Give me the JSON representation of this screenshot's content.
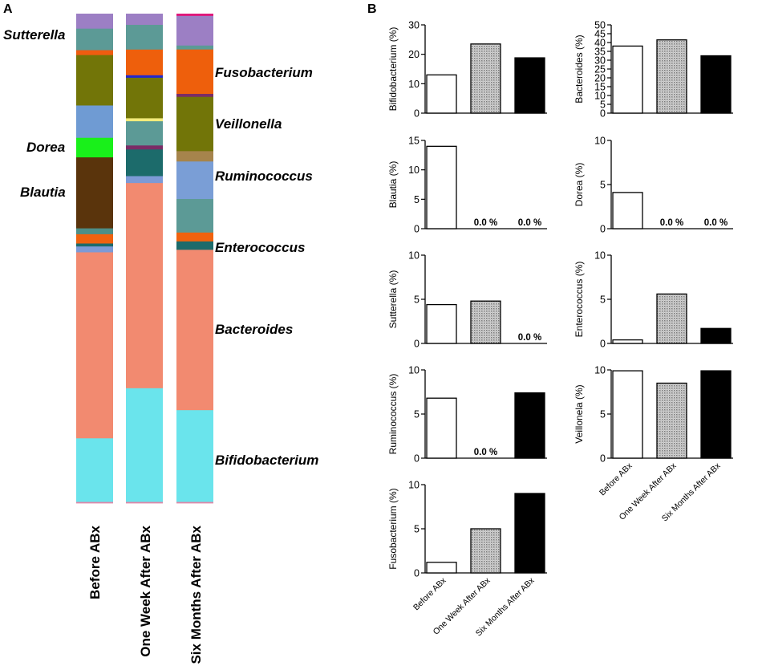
{
  "panels": {
    "a": "A",
    "b": "B"
  },
  "chart_data": [
    {
      "id": "A",
      "type": "bar",
      "subtype": "stacked-100-percent",
      "title": "",
      "ylabel": "",
      "ylim": [
        0,
        100
      ],
      "categories": [
        "Before ABx",
        "One Week After ABx",
        "Six Months After ABx"
      ],
      "note": "Segments listed from bottom (0%) to top (100%) as percentage of total reads; colours as drawn.",
      "stacks": [
        [
          {
            "color": "#e087a8",
            "value": 0.3
          },
          {
            "color": "#6ae4ec",
            "value": 13.0
          },
          {
            "color": "#f28a70",
            "value": 38.0
          },
          {
            "color": "#7d9ad6",
            "value": 1.2
          },
          {
            "color": "#1c6b6b",
            "value": 0.6
          },
          {
            "color": "#f0620f",
            "value": 1.9
          },
          {
            "color": "#4d8f88",
            "value": 1.2
          },
          {
            "color": "#5a340c",
            "value": 14.5
          },
          {
            "color": "#19f01a",
            "value": 4.0
          },
          {
            "color": "#6f9bd3",
            "value": 6.6
          },
          {
            "color": "#727508",
            "value": 10.3
          },
          {
            "color": "#ef5c10",
            "value": 1.0
          },
          {
            "color": "#5c9a96",
            "value": 4.4
          },
          {
            "color": "#9c7fc4",
            "value": 3.0
          }
        ],
        [
          {
            "color": "#e087a8",
            "value": 0.3
          },
          {
            "color": "#6ae4ec",
            "value": 23.0
          },
          {
            "color": "#f28a70",
            "value": 41.5
          },
          {
            "color": "#7d9ad6",
            "value": 1.4
          },
          {
            "color": "#1c6b6b",
            "value": 5.4
          },
          {
            "color": "#7a2c66",
            "value": 0.8
          },
          {
            "color": "#5c9a96",
            "value": 4.9
          },
          {
            "color": "#f3ec7b",
            "value": 0.6
          },
          {
            "color": "#727508",
            "value": 8.2
          },
          {
            "color": "#2028cf",
            "value": 0.5
          },
          {
            "color": "#ee5f0c",
            "value": 5.2
          },
          {
            "color": "#5c9a96",
            "value": 5.0
          },
          {
            "color": "#9c7fc4",
            "value": 2.2
          }
        ],
        [
          {
            "color": "#e087a8",
            "value": 0.3
          },
          {
            "color": "#6ae4ec",
            "value": 18.6
          },
          {
            "color": "#f28a70",
            "value": 32.5
          },
          {
            "color": "#1c6b6b",
            "value": 1.7
          },
          {
            "color": "#f0620f",
            "value": 1.8
          },
          {
            "color": "#5c9a96",
            "value": 0.6
          },
          {
            "color": "#5c9a96",
            "value": 6.2
          },
          {
            "color": "#7a9ed6",
            "value": 7.6
          },
          {
            "color": "#a6844c",
            "value": 2.1
          },
          {
            "color": "#727508",
            "value": 11.0
          },
          {
            "color": "#7a2c66",
            "value": 0.6
          },
          {
            "color": "#ee5f0c",
            "value": 9.0
          },
          {
            "color": "#5c9a96",
            "value": 0.8
          },
          {
            "color": "#9c7fc4",
            "value": 6.0
          },
          {
            "color": "#e0177a",
            "value": 0.4
          }
        ]
      ],
      "annotations": [
        "Sutterella",
        "Dorea",
        "Blautia",
        "Fusobacterium",
        "Veillonella",
        "Ruminococcus",
        "Enterococcus",
        "Bacteroides",
        "Bifidobacterium"
      ]
    },
    {
      "id": "B",
      "type": "bar",
      "categories": [
        "Before ABx",
        "One Week After ABx",
        "Six Months After ABx"
      ],
      "bar_styles": [
        "open",
        "stippled",
        "filled"
      ],
      "zero_label": "0.0 %",
      "plots": [
        {
          "ylabel": "Bifidobacterium (%)",
          "ylim": [
            0,
            30
          ],
          "yticks": [
            0,
            10,
            20,
            30
          ],
          "values": [
            13.0,
            23.5,
            18.8
          ],
          "zero_flags": [
            false,
            false,
            false
          ]
        },
        {
          "ylabel": "Bacteroides (%)",
          "ylim": [
            0,
            50
          ],
          "yticks": [
            0,
            5,
            10,
            15,
            20,
            25,
            30,
            35,
            40,
            45,
            50
          ],
          "values": [
            38.0,
            41.5,
            32.5
          ],
          "zero_flags": [
            false,
            false,
            false
          ]
        },
        {
          "ylabel": "Blautia (%)",
          "ylim": [
            0,
            15
          ],
          "yticks": [
            0,
            5,
            10,
            15
          ],
          "values": [
            14.0,
            0,
            0
          ],
          "zero_flags": [
            false,
            true,
            true
          ]
        },
        {
          "ylabel": "Dorea (%)",
          "ylim": [
            0,
            10
          ],
          "yticks": [
            0,
            5,
            10
          ],
          "values": [
            4.1,
            0,
            0
          ],
          "zero_flags": [
            false,
            true,
            true
          ]
        },
        {
          "ylabel": "Sutterella (%)",
          "ylim": [
            0,
            10
          ],
          "yticks": [
            0,
            5,
            10
          ],
          "values": [
            4.4,
            4.8,
            0
          ],
          "zero_flags": [
            false,
            false,
            true
          ]
        },
        {
          "ylabel": "Enterococcus (%)",
          "ylim": [
            0,
            10
          ],
          "yticks": [
            0,
            5,
            10
          ],
          "values": [
            0.4,
            5.6,
            1.7
          ],
          "zero_flags": [
            false,
            false,
            false
          ]
        },
        {
          "ylabel": "Ruminococcus (%)",
          "ylim": [
            0,
            10
          ],
          "yticks": [
            0,
            5,
            10
          ],
          "values": [
            6.8,
            0,
            7.4
          ],
          "zero_flags": [
            false,
            true,
            false
          ]
        },
        {
          "ylabel": "Veillonela (%)",
          "ylim": [
            0,
            10
          ],
          "yticks": [
            0,
            5,
            10
          ],
          "values": [
            9.9,
            8.5,
            9.9
          ],
          "zero_flags": [
            false,
            false,
            false
          ]
        },
        {
          "ylabel": "Fusobacterium (%)",
          "ylim": [
            0,
            10
          ],
          "yticks": [
            0,
            5,
            10
          ],
          "values": [
            1.2,
            5.0,
            9.0
          ],
          "zero_flags": [
            false,
            false,
            false
          ]
        }
      ]
    }
  ]
}
